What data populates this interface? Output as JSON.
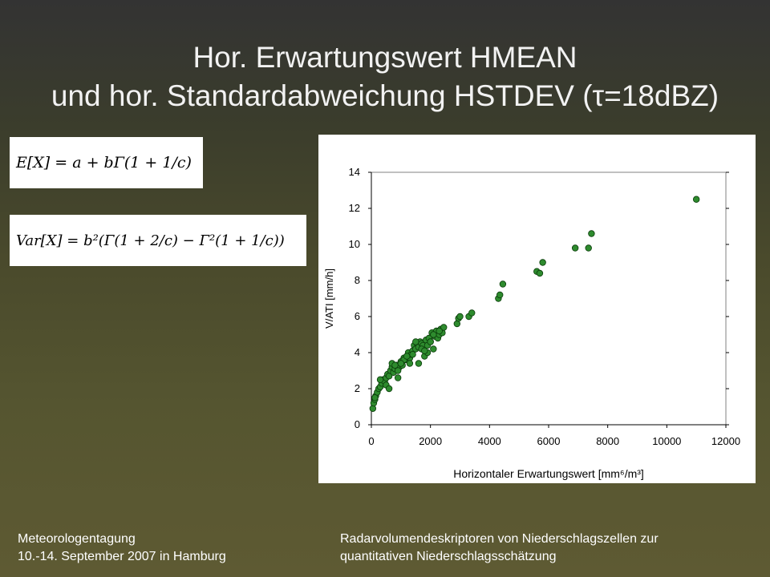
{
  "slide": {
    "title_line1": "Hor. Erwartungswert HMEAN",
    "title_line2": "und hor. Standardabweichung HSTDEV (τ=18dBZ)",
    "formula_1": "E[X] = a + bΓ(1 + 1/c)",
    "formula_2": "Var[X] = b²(Γ(1 + 2/c) − Γ²(1 + 1/c))",
    "footer_left_line1": "Meteorologentagung",
    "footer_left_line2": "10.-14. September 2007 in Hamburg",
    "footer_right_line1": "Radarvolumendeskriptoren von Niederschlagszellen zur",
    "footer_right_line2": "quantitativen Niederschlagsschätzung"
  },
  "chart_data": {
    "type": "scatter",
    "title": "",
    "xlabel": "Horizontaler Erwartungswert [mm⁶/m³]",
    "ylabel": "V/ATI [mm/h]",
    "xlim": [
      0,
      12000
    ],
    "ylim": [
      0,
      14
    ],
    "xticks": [
      "0",
      "2000",
      "4000",
      "6000",
      "8000",
      "10000",
      "12000"
    ],
    "yticks": [
      "0",
      "2",
      "4",
      "6",
      "8",
      "10",
      "12",
      "14"
    ],
    "grid": false,
    "legend": "none",
    "marker_color": "#2e8b2e",
    "series": [
      {
        "x": [
          50,
          80,
          120,
          150,
          200,
          250,
          300,
          350,
          400,
          450,
          500,
          550,
          600,
          650,
          700,
          750,
          800,
          850,
          900,
          950,
          1000,
          1050,
          1100,
          1150,
          1200,
          1250,
          1300,
          1350,
          1400,
          1450,
          1500,
          1550,
          1600,
          1650,
          1700,
          1750,
          1800,
          1850,
          1900,
          1950,
          2000,
          2050,
          2100,
          2150,
          2200,
          2250,
          2300,
          2350,
          2400,
          2450,
          120,
          300,
          500,
          700,
          900,
          1100,
          1300,
          1500,
          1700,
          1900,
          2100,
          2300,
          600,
          800,
          1000,
          1200,
          1400,
          1600,
          1800,
          2000,
          2900,
          2950,
          3000,
          3300,
          3400,
          4300,
          4350,
          4450,
          5600,
          5700,
          5800,
          6900,
          7350,
          7450,
          11000
        ],
        "y": [
          0.9,
          1.2,
          1.4,
          1.6,
          1.8,
          2.0,
          2.1,
          2.3,
          2.5,
          2.4,
          2.6,
          2.8,
          2.7,
          3.0,
          3.2,
          2.9,
          3.1,
          3.3,
          2.6,
          3.2,
          3.5,
          3.3,
          3.7,
          3.6,
          3.8,
          4.0,
          3.7,
          3.9,
          4.1,
          4.4,
          4.2,
          4.5,
          4.3,
          4.6,
          4.5,
          4.4,
          3.8,
          4.7,
          4.4,
          4.8,
          4.6,
          5.1,
          4.2,
          4.9,
          5.2,
          4.8,
          5.0,
          5.3,
          5.1,
          5.4,
          1.5,
          2.5,
          2.2,
          3.4,
          3.0,
          3.6,
          3.4,
          4.6,
          4.2,
          4.0,
          5.0,
          5.2,
          2.0,
          3.3,
          3.4,
          3.8,
          3.9,
          3.4,
          4.1,
          4.6,
          5.6,
          5.9,
          6.0,
          6.0,
          6.2,
          7.0,
          7.2,
          7.8,
          8.5,
          8.4,
          9.0,
          9.8,
          9.8,
          10.6,
          12.5
        ]
      }
    ]
  }
}
